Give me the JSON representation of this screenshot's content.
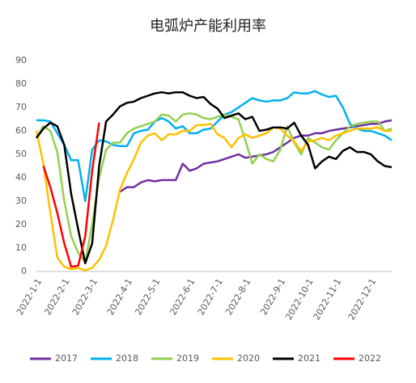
{
  "chart_data": {
    "type": "line",
    "title": "电弧炉产能利用率",
    "categories": [
      "2022-1-1",
      null,
      null,
      null,
      "2022-2-1",
      null,
      null,
      null,
      "2022-3-1",
      null,
      null,
      null,
      null,
      "2022-4-1",
      null,
      null,
      null,
      "2022-5-1",
      null,
      null,
      null,
      null,
      "2022-6-1",
      null,
      null,
      null,
      "2022-7-1",
      null,
      null,
      null,
      "2022-8-1",
      null,
      null,
      null,
      null,
      "2022-9-1",
      null,
      null,
      null,
      "2022-10-1",
      null,
      null,
      null,
      "2022-11-1",
      null,
      null,
      null,
      null,
      "2022-12-1",
      null,
      null,
      null
    ],
    "ylim": [
      0,
      90
    ],
    "yticks": [
      0,
      10,
      20,
      30,
      40,
      50,
      60,
      70,
      80,
      90
    ],
    "grid": false,
    "series": [
      {
        "name": "2017",
        "color": "#7030a0",
        "values": [
          null,
          null,
          null,
          null,
          null,
          null,
          null,
          null,
          null,
          null,
          null,
          null,
          34,
          36,
          36,
          38,
          39,
          38.5,
          39,
          39,
          39,
          46,
          43,
          44,
          46,
          46.5,
          47,
          48,
          49,
          50,
          48.5,
          49,
          49.5,
          50,
          51,
          53,
          55,
          57,
          58,
          58,
          59,
          59,
          60,
          60.5,
          61,
          61.5,
          62,
          62.5,
          63,
          63,
          64,
          64.5
        ]
      },
      {
        "name": "2018",
        "color": "#00b0f0",
        "values": [
          64.5,
          64.5,
          64,
          59,
          54,
          47.5,
          47.5,
          30,
          52,
          56,
          55.5,
          54,
          53.5,
          53.5,
          59,
          60,
          60.5,
          64,
          65.5,
          64,
          61,
          62,
          59,
          59,
          60.5,
          61,
          64,
          67,
          68,
          70,
          72,
          74,
          73,
          72.5,
          73,
          73,
          74,
          76.5,
          76,
          76,
          77,
          75.5,
          74.5,
          75,
          70,
          63,
          61,
          60,
          60,
          59,
          58,
          56
        ]
      },
      {
        "name": "2019",
        "color": "#92d050",
        "values": [
          57,
          62,
          60,
          51,
          30,
          15,
          8,
          4,
          20,
          40,
          52,
          55,
          55,
          59,
          61,
          62,
          63,
          64,
          67,
          66.5,
          64,
          67,
          67.5,
          67,
          65.5,
          65,
          66,
          67,
          66,
          65,
          56,
          46,
          50,
          48,
          47,
          52,
          62,
          55,
          50,
          57,
          55,
          53,
          52,
          56,
          59,
          62,
          63,
          63.5,
          64,
          64,
          60,
          61
        ]
      },
      {
        "name": "2020",
        "color": "#ffc000",
        "values": [
          60,
          46,
          25,
          6,
          2,
          1,
          1.5,
          0.5,
          1.5,
          5,
          11,
          22,
          35,
          42,
          48,
          55,
          58,
          59,
          56,
          58.5,
          58.5,
          60,
          60,
          62.5,
          62.5,
          63,
          58.5,
          57,
          53,
          57,
          58.5,
          57,
          58,
          59,
          61.5,
          61,
          58,
          55.5,
          51.5,
          55.5,
          56,
          57,
          56,
          58,
          59,
          60,
          61,
          61,
          61,
          61.5,
          60,
          60
        ]
      },
      {
        "name": "2021",
        "color": "#000000",
        "values": [
          57,
          61,
          63.5,
          62,
          54,
          33,
          18,
          3.5,
          12,
          45,
          64,
          67,
          70.5,
          72,
          72.5,
          74,
          75,
          76,
          76.5,
          76,
          76.5,
          76.5,
          75,
          74,
          74.5,
          71.5,
          69.5,
          65.5,
          66.5,
          67.5,
          65,
          66,
          60,
          60.5,
          61.5,
          61.5,
          61,
          63.5,
          58,
          54,
          44,
          47,
          49,
          48,
          51.5,
          53,
          51,
          51,
          50,
          47,
          45,
          44.5
        ]
      },
      {
        "name": "2022",
        "color": "#ff0000",
        "values": [
          null,
          45,
          36,
          25,
          12,
          2,
          2.5,
          15,
          43,
          63.5,
          null,
          null,
          null,
          null,
          null,
          null,
          null,
          null,
          null,
          null,
          null,
          null,
          null,
          null,
          null,
          null,
          null,
          null,
          null,
          null,
          null,
          null,
          null,
          null,
          null,
          null,
          null,
          null,
          null,
          null,
          null,
          null,
          null,
          null,
          null,
          null,
          null,
          null,
          null,
          null,
          null,
          null
        ]
      }
    ]
  }
}
